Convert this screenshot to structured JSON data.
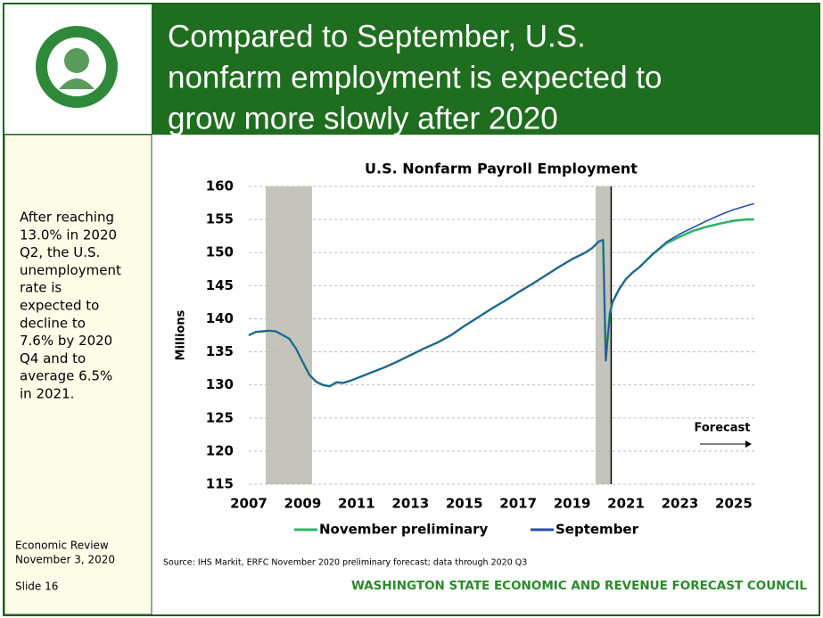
{
  "header": {
    "title_lines": [
      "Compared to September, U.S.",
      "nonfarm employment is expected to",
      "grow more slowly after 2020"
    ]
  },
  "sidebar": {
    "lines": [
      "After reaching",
      "13.0% in 2020",
      "Q2, the U.S.",
      "unemployment",
      "rate is",
      "expected to",
      "decline to",
      "7.6% by 2020",
      "Q4 and to",
      "average 6.5%",
      "in 2021."
    ],
    "review": [
      "Economic Review",
      "November 3, 2020"
    ],
    "slide": "Slide 16"
  },
  "footer": "WASHINGTON STATE ECONOMIC AND REVENUE FORECAST COUNCIL",
  "chart_data": {
    "type": "line",
    "title": "U.S. Nonfarm Payroll Employment",
    "y_label": "Millions",
    "source": "Source: IHS Markit, ERFC November 2020 preliminary forecast; data through 2020 Q3",
    "annotation": "Forecast",
    "forecast_start": 2020.45,
    "recessions": [
      [
        2007.63,
        2009.35
      ],
      [
        2019.87,
        2020.43
      ]
    ],
    "x": [
      2007.0,
      2007.25,
      2007.75,
      2008.0,
      2008.5,
      2008.75,
      2009.0,
      2009.25,
      2009.5,
      2009.75,
      2010.0,
      2010.25,
      2010.5,
      2010.75,
      2011.0,
      2011.5,
      2012.0,
      2012.5,
      2013.0,
      2013.5,
      2014.0,
      2014.5,
      2015.0,
      2015.5,
      2016.0,
      2016.5,
      2017.0,
      2017.5,
      2018.0,
      2018.5,
      2019.0,
      2019.5,
      2019.75,
      2020.0,
      2020.15,
      2020.25,
      2020.4,
      2020.5,
      2020.75,
      2021.0,
      2021.25,
      2021.5,
      2022.0,
      2022.5,
      2023.0,
      2023.5,
      2024.0,
      2024.5,
      2025.0,
      2025.5,
      2025.75
    ],
    "series": [
      {
        "name": "November preliminary",
        "color": "#2eb466",
        "values": [
          137.5,
          138.0,
          138.2,
          138.1,
          137.0,
          135.5,
          133.5,
          131.5,
          130.5,
          130.0,
          129.8,
          130.4,
          130.3,
          130.6,
          131.0,
          131.8,
          132.6,
          133.5,
          134.5,
          135.5,
          136.4,
          137.5,
          138.9,
          140.2,
          141.5,
          142.7,
          144.0,
          145.2,
          146.5,
          147.8,
          149.0,
          150.0,
          150.7,
          151.7,
          151.9,
          133.7,
          140.8,
          142.5,
          144.5,
          146.0,
          147.0,
          147.8,
          149.8,
          151.4,
          152.4,
          153.3,
          153.9,
          154.4,
          154.8,
          155.0,
          155.0
        ]
      },
      {
        "name": "September",
        "color": "#2a4fa8",
        "values": [
          137.5,
          138.0,
          138.2,
          138.1,
          137.0,
          135.5,
          133.5,
          131.5,
          130.5,
          130.0,
          129.8,
          130.4,
          130.3,
          130.6,
          131.0,
          131.8,
          132.6,
          133.5,
          134.5,
          135.5,
          136.4,
          137.5,
          138.9,
          140.2,
          141.5,
          142.7,
          144.0,
          145.2,
          146.5,
          147.8,
          149.0,
          150.0,
          150.7,
          151.7,
          151.9,
          133.7,
          140.8,
          142.5,
          144.5,
          146.0,
          147.0,
          147.8,
          149.8,
          151.6,
          152.8,
          153.8,
          154.8,
          155.7,
          156.5,
          157.1,
          157.4
        ]
      }
    ],
    "xlim": [
      2007,
      2025.83
    ],
    "xticks": [
      2007,
      2009,
      2011,
      2013,
      2015,
      2017,
      2019,
      2021,
      2023,
      2025
    ],
    "ylim": [
      115,
      160
    ],
    "yticks": [
      115,
      120,
      125,
      130,
      135,
      140,
      145,
      150,
      155,
      160
    ],
    "grid": true
  }
}
